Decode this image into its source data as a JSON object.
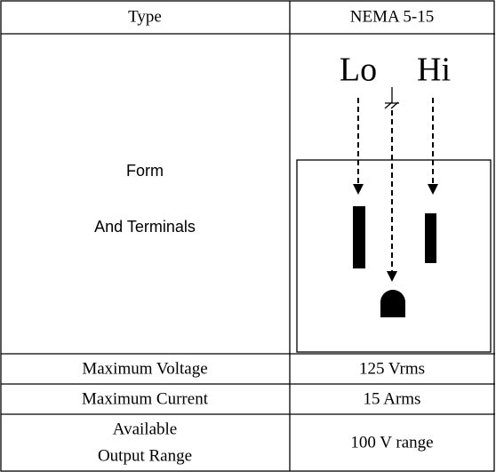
{
  "table": {
    "rows": [
      [
        "Type",
        "NEMA 5-15"
      ],
      [
        [
          "Form",
          "And Terminals"
        ],
        {
          "labels": [
            "Lo",
            "Hi"
          ]
        }
      ],
      [
        "Maximum Voltage",
        "125 Vrms"
      ],
      [
        "Maximum Current",
        "15 Arms"
      ],
      [
        [
          "Available",
          "Output Range"
        ],
        "100 V range"
      ]
    ]
  }
}
